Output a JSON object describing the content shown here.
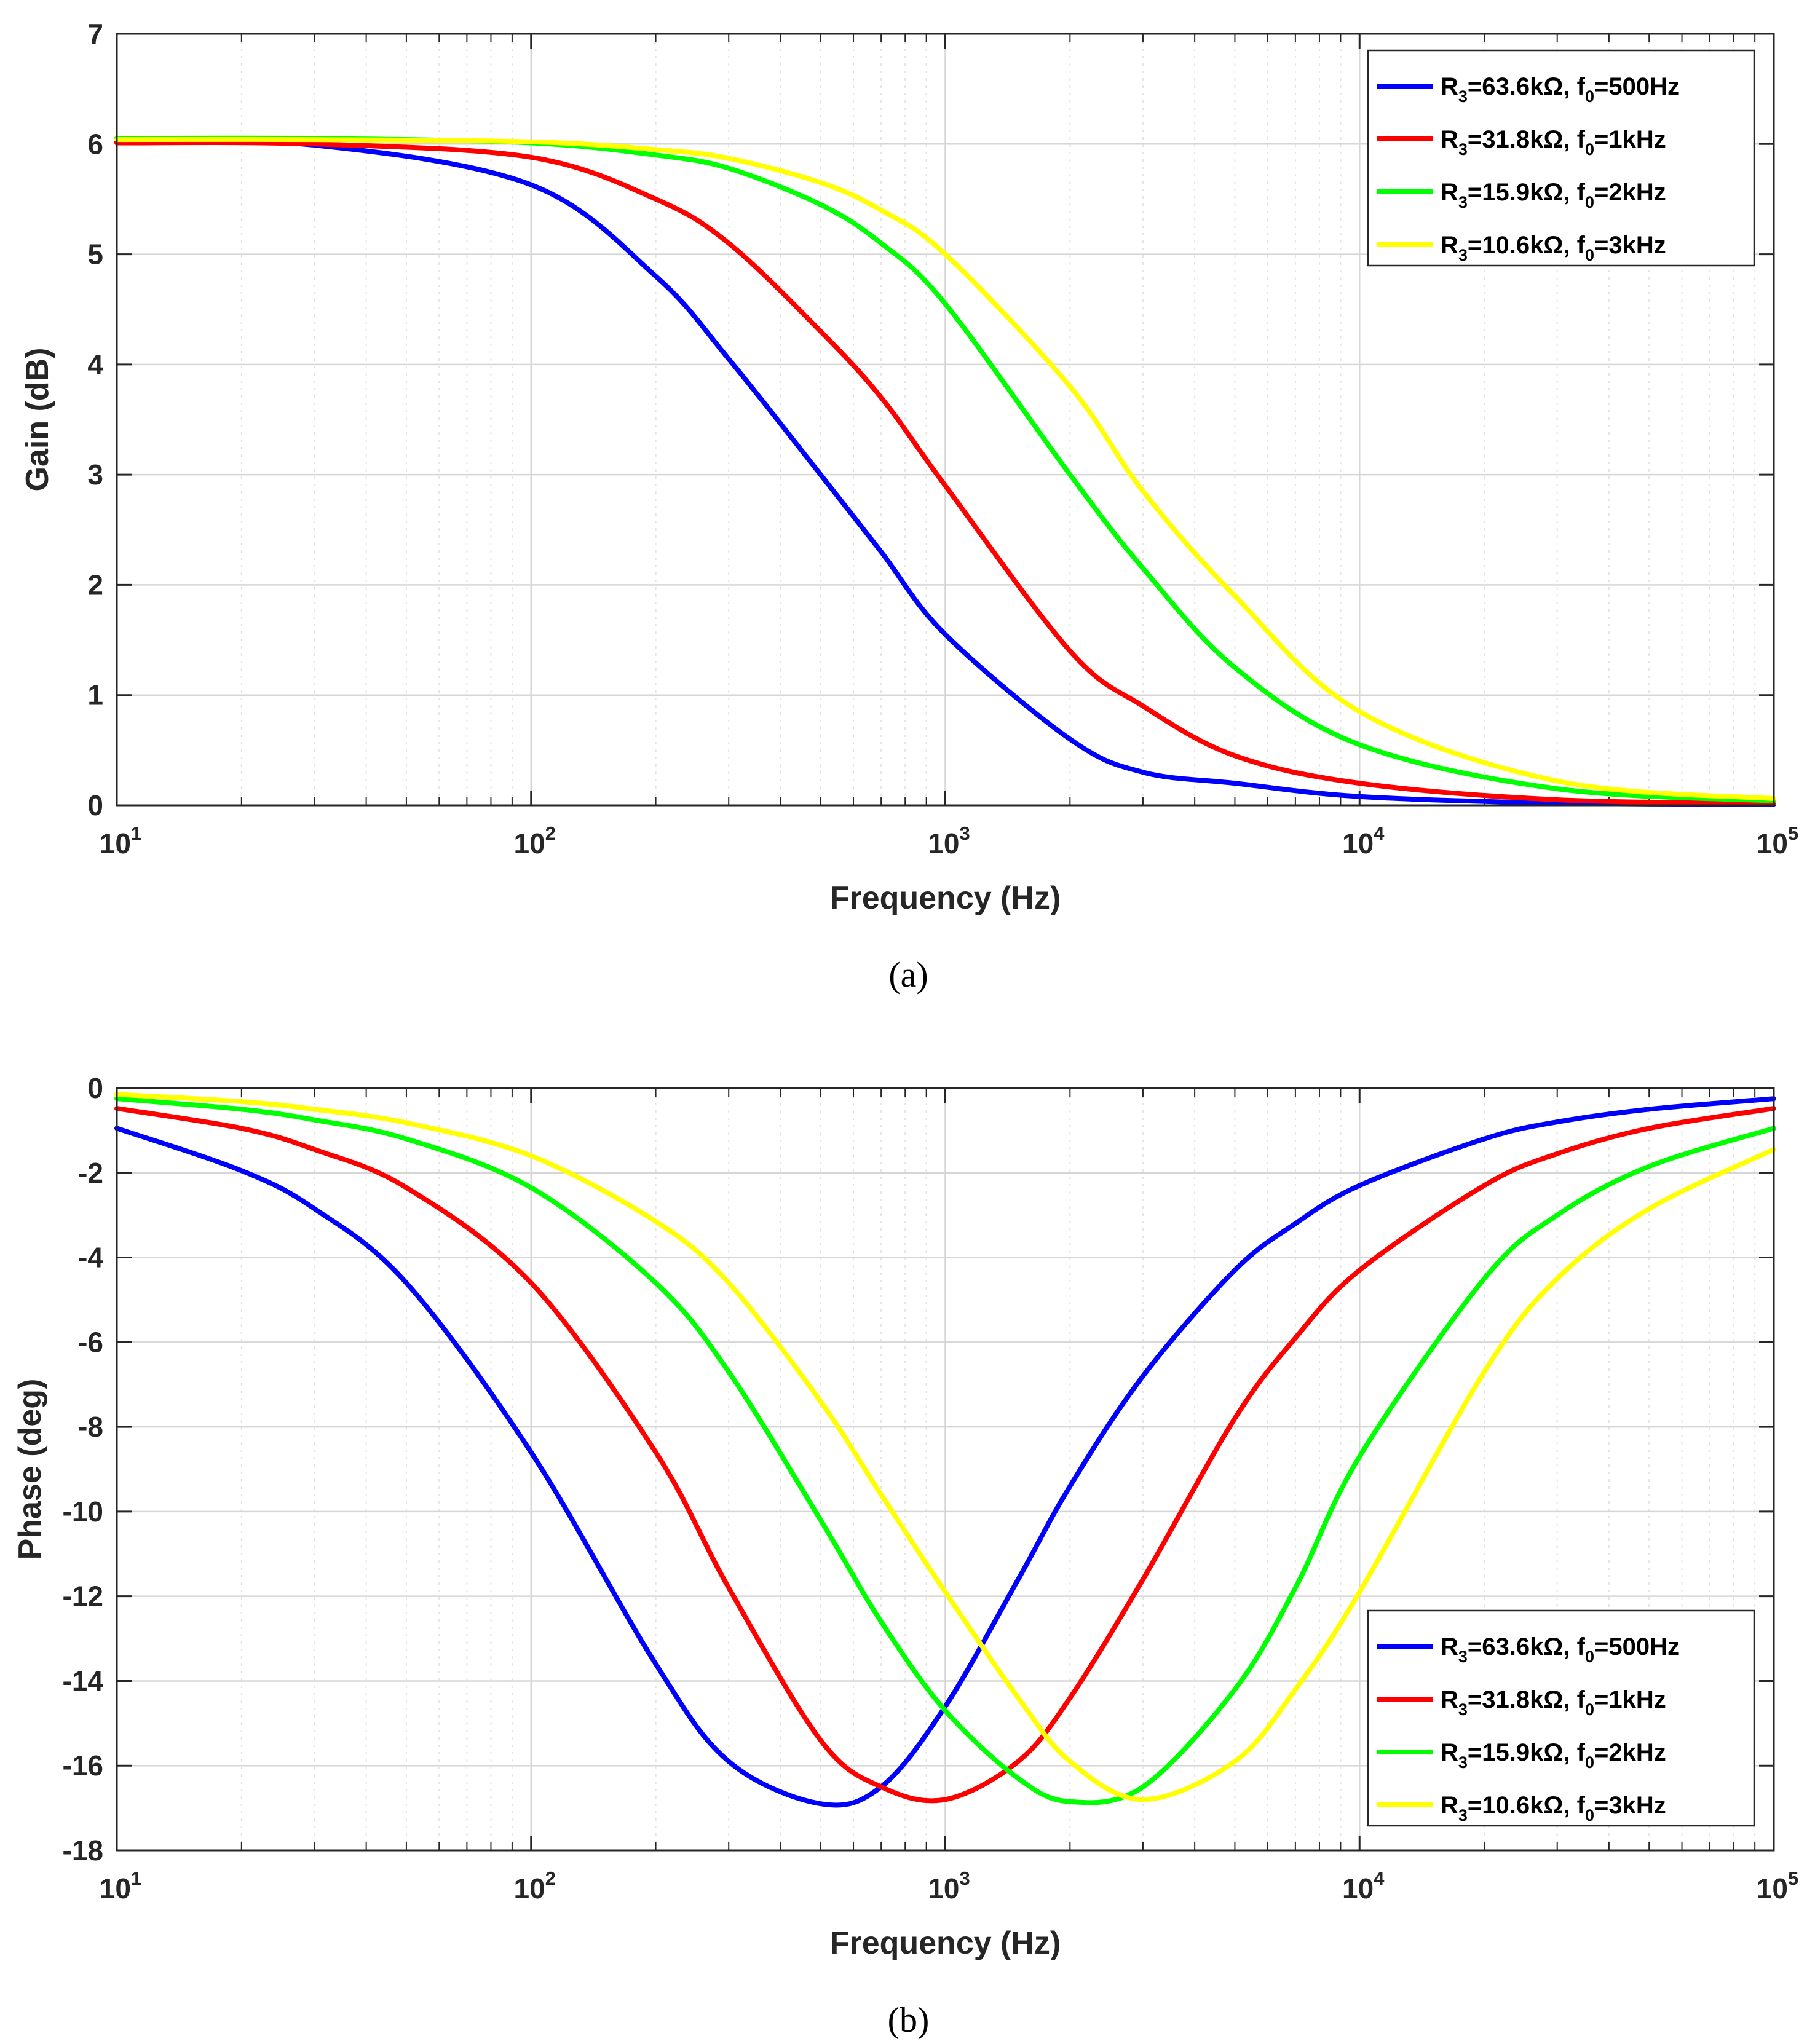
{
  "chart_data": [
    {
      "type": "line",
      "caption": "(a)",
      "xlabel": "Frequency (Hz)",
      "ylabel": "Gain (dB)",
      "xscale": "log",
      "xlim": [
        10,
        100000
      ],
      "ylim": [
        0,
        7
      ],
      "xticks": [
        {
          "base": "10",
          "exp": "1"
        },
        {
          "base": "10",
          "exp": "2"
        },
        {
          "base": "10",
          "exp": "3"
        },
        {
          "base": "10",
          "exp": "4"
        },
        {
          "base": "10",
          "exp": "5"
        }
      ],
      "yticks": [
        "0",
        "1",
        "2",
        "3",
        "4",
        "5",
        "6",
        "7"
      ],
      "grid": true,
      "legend_position": "top-right",
      "x": [
        10,
        30,
        100,
        200,
        300,
        500,
        700,
        1000,
        2000,
        3000,
        5000,
        10000,
        30000,
        100000
      ],
      "series": [
        {
          "name": "R3=63.6kΩ, f0=500Hz",
          "legend": {
            "pre": "R",
            "sub1": "3",
            "mid": "=63.6kΩ, f",
            "sub2": "0",
            "post": "=500Hz"
          },
          "color": "#0000ff",
          "values": [
            6.02,
            5.99,
            5.63,
            4.8,
            4.05,
            3.0,
            2.3,
            1.55,
            0.6,
            0.3,
            0.2,
            0.08,
            0.02,
            0.01
          ]
        },
        {
          "name": "R3=31.8kΩ, f0=1kHz",
          "legend": {
            "pre": "R",
            "sub1": "3",
            "mid": "=31.8kΩ, f",
            "sub2": "0",
            "post": "=1kHz"
          },
          "color": "#ff0000",
          "values": [
            6.01,
            6.0,
            5.88,
            5.5,
            5.1,
            4.3,
            3.7,
            2.9,
            1.4,
            0.9,
            0.45,
            0.2,
            0.05,
            0.02
          ]
        },
        {
          "name": "R3=15.9kΩ, f0=2kHz",
          "legend": {
            "pre": "R",
            "sub1": "3",
            "mid": "=15.9kΩ, f",
            "sub2": "0",
            "post": "=2kHz"
          },
          "color": "#00ff00",
          "values": [
            6.05,
            6.05,
            6.01,
            5.9,
            5.78,
            5.45,
            5.1,
            4.55,
            3.0,
            2.15,
            1.25,
            0.55,
            0.15,
            0.04
          ]
        },
        {
          "name": "R3=10.6kΩ, f0=3kHz",
          "legend": {
            "pre": "R",
            "sub1": "3",
            "mid": "=10.6kΩ, f",
            "sub2": "0",
            "post": "=3kHz"
          },
          "color": "#ffff00",
          "values": [
            6.04,
            6.04,
            6.02,
            5.95,
            5.87,
            5.65,
            5.4,
            5.0,
            3.8,
            2.85,
            1.9,
            0.85,
            0.22,
            0.06
          ]
        }
      ]
    },
    {
      "type": "line",
      "caption": "(b)",
      "xlabel": "Frequency (Hz)",
      "ylabel": "Phase (deg)",
      "xscale": "log",
      "xlim": [
        10,
        100000
      ],
      "ylim": [
        -18,
        0
      ],
      "xticks": [
        {
          "base": "10",
          "exp": "1"
        },
        {
          "base": "10",
          "exp": "2"
        },
        {
          "base": "10",
          "exp": "3"
        },
        {
          "base": "10",
          "exp": "4"
        },
        {
          "base": "10",
          "exp": "5"
        }
      ],
      "yticks": [
        "0",
        "-2",
        "-4",
        "-6",
        "-8",
        "-10",
        "-12",
        "-14",
        "-16",
        "-18"
      ],
      "grid": true,
      "legend_position": "bottom-right",
      "x": [
        10,
        20,
        30,
        50,
        100,
        200,
        300,
        500,
        700,
        1000,
        1500,
        2000,
        3000,
        5000,
        7000,
        10000,
        20000,
        30000,
        50000,
        100000
      ],
      "series": [
        {
          "name": "R3=63.6kΩ, f0=500Hz",
          "legend": {
            "pre": "R",
            "sub1": "3",
            "mid": "=63.6kΩ, f",
            "sub2": "0",
            "post": "=500Hz"
          },
          "color": "#0000ff",
          "values": [
            -0.95,
            -1.95,
            -2.85,
            -4.6,
            -8.6,
            -13.6,
            -15.9,
            -16.9,
            -16.5,
            -14.6,
            -11.6,
            -9.4,
            -6.8,
            -4.3,
            -3.2,
            -2.3,
            -1.2,
            -0.8,
            -0.5,
            -0.25
          ]
        },
        {
          "name": "R3=31.8kΩ, f0=1kHz",
          "legend": {
            "pre": "R",
            "sub1": "3",
            "mid": "=31.8kΩ, f",
            "sub2": "0",
            "post": "=1kHz"
          },
          "color": "#ff0000",
          "values": [
            -0.48,
            -0.95,
            -1.45,
            -2.35,
            -4.6,
            -8.6,
            -11.8,
            -15.4,
            -16.5,
            -16.8,
            -15.9,
            -14.4,
            -11.6,
            -7.8,
            -5.9,
            -4.3,
            -2.3,
            -1.55,
            -0.95,
            -0.48
          ]
        },
        {
          "name": "R3=15.9kΩ, f0=2kHz",
          "legend": {
            "pre": "R",
            "sub1": "3",
            "mid": "=15.9kΩ, f",
            "sub2": "0",
            "post": "=2kHz"
          },
          "color": "#00ff00",
          "values": [
            -0.25,
            -0.5,
            -0.75,
            -1.2,
            -2.35,
            -4.6,
            -6.7,
            -10.2,
            -12.6,
            -14.7,
            -16.3,
            -16.85,
            -16.5,
            -14.2,
            -11.8,
            -8.7,
            -4.5,
            -3.0,
            -1.85,
            -0.95
          ]
        },
        {
          "name": "R3=10.6kΩ, f0=3kHz",
          "legend": {
            "pre": "R",
            "sub1": "3",
            "mid": "=10.6kΩ, f",
            "sub2": "0",
            "post": "=3kHz"
          },
          "color": "#ffff00",
          "values": [
            -0.15,
            -0.32,
            -0.5,
            -0.82,
            -1.6,
            -3.15,
            -4.6,
            -7.4,
            -9.6,
            -11.9,
            -14.4,
            -15.9,
            -16.8,
            -15.9,
            -14.2,
            -11.9,
            -6.7,
            -4.5,
            -2.85,
            -1.45
          ]
        }
      ]
    }
  ]
}
